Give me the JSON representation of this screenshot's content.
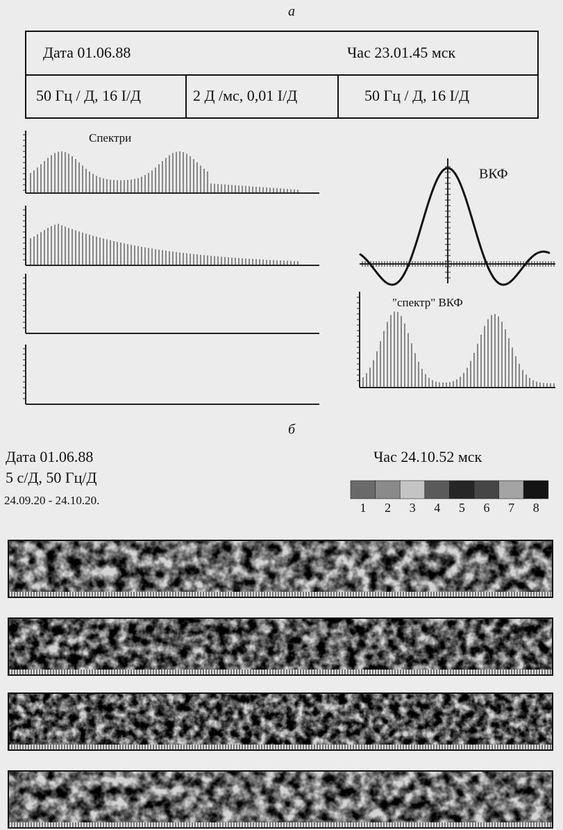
{
  "panel_a": {
    "label": "а",
    "header": {
      "date": "Дата  01.06.88",
      "time": "Час 23.01.45 мск"
    },
    "params": [
      "50 Гц / Д, 16  І/Д",
      "2 Д /мс,   0,01 І/Д",
      "50 Гц / Д,   16 І/Д"
    ],
    "spectra_title": "Спектри",
    "ccf_title": "ВКФ",
    "ccf_spectrum_title": "\"спектр\" ВКФ"
  },
  "panel_b": {
    "label": "б",
    "date": "Дата 01.06.88",
    "scale": "5 с/Д, 50 Гц/Д",
    "period": "24.09.20 - 24.10.20.",
    "time": "Час  24.10.52 мск",
    "legend": [
      {
        "label": "1",
        "color": "#6a6a6a"
      },
      {
        "label": "2",
        "color": "#8a8a8a"
      },
      {
        "label": "3",
        "color": "#c4c4c4"
      },
      {
        "label": "4",
        "color": "#5a5a5a"
      },
      {
        "label": "5",
        "color": "#262626"
      },
      {
        "label": "6",
        "color": "#464646"
      },
      {
        "label": "7",
        "color": "#a4a4a4"
      },
      {
        "label": "8",
        "color": "#141414"
      }
    ]
  }
}
